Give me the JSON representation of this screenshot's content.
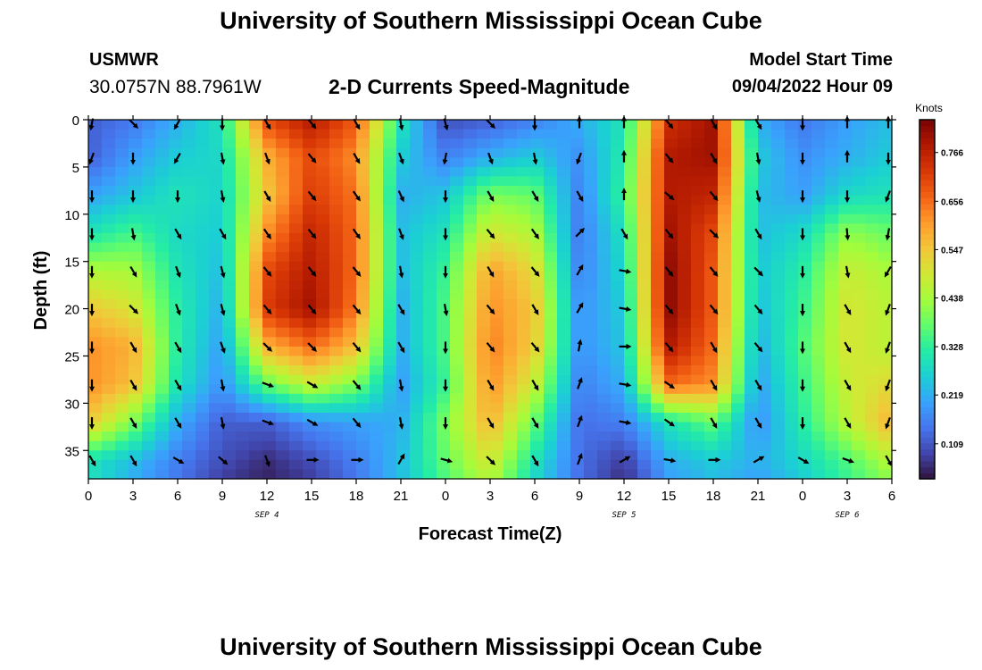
{
  "header": {
    "title": "University of Southern Mississippi Ocean Cube",
    "station": "USMWR",
    "coords": "30.0757N  88.7961W",
    "subtitle": "2-D Currents Speed-Magnitude",
    "model_start_label": "Model Start Time",
    "model_start_value": "09/04/2022 Hour 09"
  },
  "footer": {
    "title": "University of Southern Mississippi Ocean Cube"
  },
  "chart_data": {
    "type": "heatmap",
    "title": "2-D Currents Speed-Magnitude",
    "xlabel": "Forecast Time(Z)",
    "ylabel": "Depth (ft)",
    "x_ticks": [
      "0",
      "3",
      "6",
      "9",
      "12",
      "15",
      "18",
      "21",
      "0",
      "3",
      "6",
      "9",
      "12",
      "15",
      "18",
      "21",
      "0",
      "3",
      "6"
    ],
    "x_range_hours": [
      0,
      54
    ],
    "y_ticks": [
      0,
      5,
      10,
      15,
      20,
      25,
      30,
      35
    ],
    "y_range": [
      0,
      38
    ],
    "date_labels": [
      {
        "text": "SEP 4",
        "hour": 12
      },
      {
        "text": "SEP 5",
        "hour": 36
      },
      {
        "text": "SEP 6",
        "hour": 51
      }
    ],
    "colorbar": {
      "unit": "Knots",
      "ticks": [
        "0.766",
        "0.656",
        "0.547",
        "0.438",
        "0.328",
        "0.219",
        "0.109"
      ],
      "tick_values": [
        0.766,
        0.656,
        0.547,
        0.438,
        0.328,
        0.219,
        0.109
      ],
      "range": [
        0.03,
        0.84
      ],
      "colors": [
        "#30123b",
        "#4145ab",
        "#4675ed",
        "#39a2fc",
        "#1bcfd4",
        "#24eca6",
        "#61fc6c",
        "#a4fc3b",
        "#d1e834",
        "#f3c63a",
        "#fe9b2d",
        "#f36315",
        "#d93806",
        "#b11901",
        "#7a0403"
      ]
    },
    "field": {
      "description": "Approximate current speed (knots) on a depth x time grid; rows = depths, cols = forecast hours",
      "depths_ft": [
        0,
        4,
        8,
        12,
        16,
        20,
        24,
        28,
        32,
        36,
        38
      ],
      "hours": [
        0,
        3,
        6,
        9,
        12,
        15,
        18,
        21,
        24,
        27,
        30,
        33,
        36,
        39,
        42,
        45,
        48,
        51,
        54
      ],
      "speed": [
        [
          0.12,
          0.15,
          0.22,
          0.3,
          0.7,
          0.78,
          0.68,
          0.3,
          0.1,
          0.12,
          0.16,
          0.22,
          0.3,
          0.74,
          0.8,
          0.22,
          0.15,
          0.2,
          0.24
        ],
        [
          0.12,
          0.2,
          0.26,
          0.28,
          0.58,
          0.7,
          0.62,
          0.26,
          0.16,
          0.22,
          0.26,
          0.18,
          0.32,
          0.78,
          0.8,
          0.26,
          0.18,
          0.22,
          0.26
        ],
        [
          0.2,
          0.25,
          0.3,
          0.27,
          0.55,
          0.72,
          0.65,
          0.22,
          0.25,
          0.4,
          0.38,
          0.16,
          0.34,
          0.78,
          0.76,
          0.24,
          0.2,
          0.28,
          0.3
        ],
        [
          0.3,
          0.35,
          0.28,
          0.26,
          0.62,
          0.76,
          0.66,
          0.24,
          0.3,
          0.5,
          0.45,
          0.15,
          0.3,
          0.8,
          0.7,
          0.24,
          0.28,
          0.42,
          0.38
        ],
        [
          0.45,
          0.44,
          0.3,
          0.24,
          0.7,
          0.78,
          0.66,
          0.24,
          0.34,
          0.6,
          0.52,
          0.16,
          0.28,
          0.82,
          0.68,
          0.25,
          0.32,
          0.48,
          0.44
        ],
        [
          0.55,
          0.5,
          0.32,
          0.22,
          0.72,
          0.8,
          0.64,
          0.22,
          0.36,
          0.62,
          0.55,
          0.18,
          0.26,
          0.82,
          0.68,
          0.24,
          0.34,
          0.5,
          0.46
        ],
        [
          0.62,
          0.58,
          0.32,
          0.2,
          0.58,
          0.66,
          0.56,
          0.22,
          0.36,
          0.64,
          0.54,
          0.18,
          0.25,
          0.78,
          0.66,
          0.22,
          0.36,
          0.5,
          0.46
        ],
        [
          0.62,
          0.56,
          0.3,
          0.18,
          0.38,
          0.48,
          0.4,
          0.2,
          0.34,
          0.62,
          0.48,
          0.16,
          0.22,
          0.66,
          0.62,
          0.2,
          0.34,
          0.48,
          0.52
        ],
        [
          0.55,
          0.4,
          0.22,
          0.12,
          0.12,
          0.18,
          0.2,
          0.22,
          0.4,
          0.58,
          0.38,
          0.14,
          0.16,
          0.3,
          0.38,
          0.18,
          0.32,
          0.46,
          0.58
        ],
        [
          0.3,
          0.24,
          0.16,
          0.1,
          0.06,
          0.1,
          0.16,
          0.24,
          0.38,
          0.5,
          0.3,
          0.14,
          0.08,
          0.22,
          0.26,
          0.22,
          0.28,
          0.36,
          0.46
        ],
        [
          0.3,
          0.22,
          0.15,
          0.08,
          0.05,
          0.08,
          0.15,
          0.24,
          0.36,
          0.46,
          0.28,
          0.14,
          0.06,
          0.2,
          0.24,
          0.2,
          0.26,
          0.34,
          0.42
        ]
      ],
      "arrow_depths_ft": [
        0,
        4,
        8,
        12,
        16,
        20,
        24,
        28,
        32,
        36
      ],
      "arrow_hours": [
        0,
        3,
        6,
        9,
        12,
        15,
        18,
        21,
        24,
        27,
        30,
        33,
        36,
        39,
        42,
        45,
        48,
        51,
        54
      ],
      "arrow_direction_deg": [
        [
          190,
          135,
          210,
          180,
          150,
          140,
          150,
          170,
          165,
          135,
          180,
          0,
          0,
          140,
          150,
          150,
          180,
          0,
          0
        ],
        [
          200,
          180,
          210,
          170,
          160,
          140,
          150,
          160,
          190,
          160,
          170,
          200,
          0,
          140,
          150,
          170,
          180,
          0,
          180
        ],
        [
          180,
          180,
          180,
          170,
          150,
          140,
          145,
          155,
          180,
          150,
          150,
          150,
          0,
          130,
          140,
          165,
          180,
          180,
          200
        ],
        [
          180,
          170,
          150,
          150,
          145,
          140,
          145,
          160,
          180,
          140,
          145,
          45,
          150,
          140,
          135,
          150,
          180,
          175,
          190
        ],
        [
          180,
          150,
          160,
          165,
          140,
          140,
          140,
          170,
          180,
          150,
          140,
          30,
          100,
          140,
          140,
          135,
          180,
          170,
          210
        ],
        [
          180,
          135,
          160,
          165,
          140,
          140,
          140,
          150,
          170,
          140,
          150,
          30,
          100,
          140,
          140,
          140,
          180,
          150,
          200
        ],
        [
          180,
          150,
          150,
          160,
          135,
          135,
          140,
          150,
          180,
          140,
          140,
          10,
          90,
          140,
          150,
          140,
          180,
          150,
          200
        ],
        [
          180,
          150,
          150,
          170,
          110,
          120,
          140,
          170,
          180,
          150,
          150,
          20,
          100,
          125,
          150,
          150,
          180,
          150,
          200
        ],
        [
          180,
          150,
          150,
          170,
          110,
          120,
          140,
          170,
          180,
          150,
          150,
          20,
          100,
          125,
          150,
          150,
          180,
          150,
          200
        ],
        [
          150,
          150,
          120,
          130,
          160,
          90,
          90,
          30,
          105,
          135,
          150,
          20,
          60,
          100,
          90,
          60,
          120,
          110,
          150
        ]
      ]
    }
  }
}
